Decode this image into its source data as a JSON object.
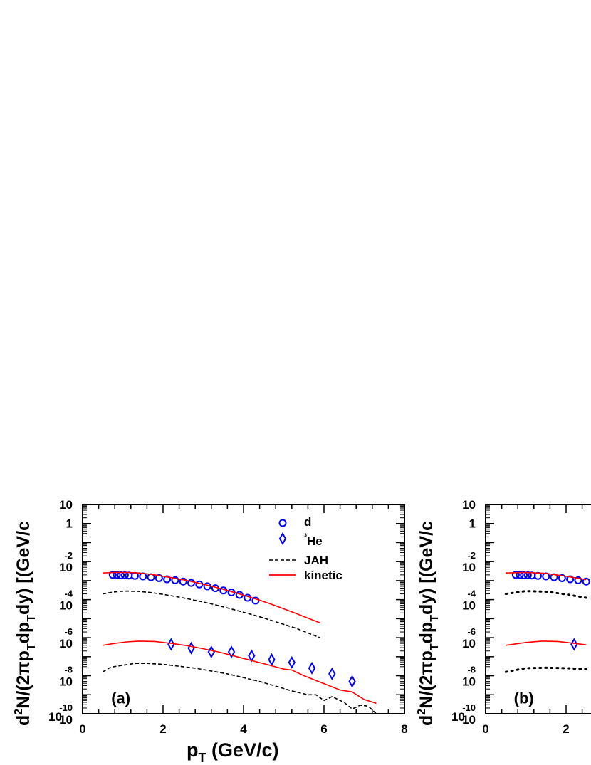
{
  "chart_data": [
    {
      "type": "scatter",
      "panel_label": "(a)",
      "xlabel_main": "p",
      "xlabel_sub": "T",
      "xlabel_unit": "(GeV/c)",
      "ylabel": "d²N/(2πp_Tdp_Tdy) [(GeV/c",
      "xlim": [
        0,
        8
      ],
      "ylim_log10": [
        -10,
        1
      ],
      "y_scale": "log",
      "x_ticks": [
        "0",
        "2",
        "4",
        "6",
        "8"
      ],
      "legend": {
        "entries": [
          "d",
          "³He",
          "JAH",
          "kinetic"
        ],
        "placement": "top-right"
      },
      "series": [
        {
          "name": "d",
          "marker": "circle",
          "color": "#0000ff",
          "x": [
            0.75,
            0.85,
            0.95,
            1.05,
            1.15,
            1.3,
            1.5,
            1.7,
            1.9,
            2.1,
            2.3,
            2.5,
            2.7,
            2.9,
            3.1,
            3.3,
            3.5,
            3.7,
            3.9,
            4.1,
            4.3
          ],
          "log10_y": [
            -2.7,
            -2.7,
            -2.72,
            -2.72,
            -2.73,
            -2.75,
            -2.78,
            -2.82,
            -2.87,
            -2.93,
            -2.98,
            -3.05,
            -3.12,
            -3.2,
            -3.3,
            -3.4,
            -3.52,
            -3.62,
            -3.75,
            -3.9,
            -4.05
          ]
        },
        {
          "name": "³He",
          "marker": "diamond",
          "color": "#0000ff",
          "x": [
            2.2,
            2.7,
            3.2,
            3.7,
            4.2,
            4.7,
            5.2,
            5.7,
            6.2,
            6.7
          ],
          "log10_y": [
            -6.35,
            -6.55,
            -6.75,
            -6.75,
            -6.95,
            -7.15,
            -7.3,
            -7.6,
            -7.9,
            -8.3
          ]
        },
        {
          "name": "JAH",
          "style": "dashed",
          "color": "#000000",
          "curves": [
            {
              "x": [
                0.5,
                0.7,
                0.9,
                1.1,
                1.4,
                1.7,
                2.0,
                2.3,
                2.6,
                2.9,
                3.2,
                3.5,
                3.8,
                4.1,
                4.4,
                4.7,
                5.0,
                5.3,
                5.6,
                5.9
              ],
              "log10_y": [
                -3.7,
                -3.62,
                -3.57,
                -3.55,
                -3.57,
                -3.63,
                -3.72,
                -3.83,
                -3.95,
                -4.08,
                -4.22,
                -4.38,
                -4.55,
                -4.72,
                -4.9,
                -5.1,
                -5.3,
                -5.5,
                -5.75,
                -6.0
              ]
            },
            {
              "x": [
                0.5,
                0.7,
                1.0,
                1.3,
                1.6,
                2.0,
                2.4,
                2.8,
                3.2,
                3.6,
                4.0,
                4.4,
                4.8,
                5.2,
                5.6,
                5.8,
                6.0,
                6.2,
                6.5,
                6.7,
                6.9,
                7.1,
                7.3
              ],
              "log10_y": [
                -7.8,
                -7.55,
                -7.45,
                -7.35,
                -7.35,
                -7.4,
                -7.5,
                -7.6,
                -7.75,
                -7.9,
                -8.1,
                -8.3,
                -8.55,
                -8.8,
                -9.0,
                -9.0,
                -9.3,
                -9.1,
                -9.4,
                -9.75,
                -9.55,
                -9.6,
                -10.0
              ]
            }
          ]
        },
        {
          "name": "kinetic",
          "style": "solid",
          "color": "#ff0000",
          "curves": [
            {
              "x": [
                0.5,
                0.8,
                1.1,
                1.4,
                1.7,
                2.0,
                2.3,
                2.6,
                2.9,
                3.2,
                3.5,
                3.8,
                4.1,
                4.4,
                4.7,
                5.0,
                5.3,
                5.6,
                5.9
              ],
              "log10_y": [
                -2.6,
                -2.57,
                -2.57,
                -2.6,
                -2.67,
                -2.77,
                -2.88,
                -3.0,
                -3.14,
                -3.29,
                -3.46,
                -3.64,
                -3.83,
                -4.03,
                -4.25,
                -4.48,
                -4.72,
                -4.97,
                -5.22
              ]
            },
            {
              "x": [
                0.5,
                0.8,
                1.1,
                1.4,
                1.8,
                2.2,
                2.6,
                3.0,
                3.4,
                3.8,
                4.2,
                4.6,
                5.0,
                5.2,
                5.5,
                5.8,
                6.1,
                6.4,
                6.7,
                7.0,
                7.3
              ],
              "log10_y": [
                -6.4,
                -6.3,
                -6.22,
                -6.18,
                -6.2,
                -6.3,
                -6.42,
                -6.58,
                -6.76,
                -6.98,
                -7.2,
                -7.42,
                -7.65,
                -7.7,
                -8.0,
                -8.25,
                -8.5,
                -8.75,
                -8.85,
                -9.25,
                -9.45
              ]
            }
          ]
        }
      ]
    },
    {
      "type": "scatter",
      "panel_label": "(b)",
      "ylabel": "d²N/(2πp_Tdp_Tdy) [(GeV/c",
      "xlim": [
        0,
        8
      ],
      "ylim_log10": [
        -10,
        1
      ],
      "y_scale": "log",
      "x_ticks": [
        "0",
        "2"
      ],
      "series": [
        {
          "name": "d",
          "marker": "circle",
          "color": "#0000ff",
          "x": [
            0.75,
            0.85,
            0.95,
            1.05,
            1.15,
            1.3,
            1.5,
            1.7,
            1.9,
            2.1,
            2.3,
            2.5
          ],
          "log10_y": [
            -2.7,
            -2.7,
            -2.72,
            -2.72,
            -2.73,
            -2.75,
            -2.78,
            -2.82,
            -2.87,
            -2.93,
            -2.98,
            -3.05
          ]
        },
        {
          "name": "³He",
          "marker": "diamond",
          "color": "#0000ff",
          "x": [
            2.2
          ],
          "log10_y": [
            -6.35
          ]
        },
        {
          "name": "JAH",
          "style": "dotted",
          "color": "#000000",
          "curves": [
            {
              "x": [
                0.5,
                1.0,
                1.5,
                2.0,
                2.5
              ],
              "log10_y": [
                -3.7,
                -3.55,
                -3.58,
                -3.72,
                -3.9
              ]
            },
            {
              "x": [
                0.5,
                1.0,
                1.5,
                2.0,
                2.5
              ],
              "log10_y": [
                -7.8,
                -7.6,
                -7.58,
                -7.6,
                -7.65
              ]
            }
          ]
        },
        {
          "name": "kinetic",
          "style": "solid",
          "color": "#ff0000",
          "curves": [
            {
              "x": [
                0.5,
                1.0,
                1.5,
                2.0,
                2.5
              ],
              "log10_y": [
                -2.6,
                -2.57,
                -2.62,
                -2.77,
                -2.95
              ]
            },
            {
              "x": [
                0.5,
                1.0,
                1.4,
                1.8,
                2.2,
                2.5
              ],
              "log10_y": [
                -6.4,
                -6.25,
                -6.18,
                -6.2,
                -6.3,
                -6.38
              ]
            }
          ]
        }
      ]
    }
  ]
}
